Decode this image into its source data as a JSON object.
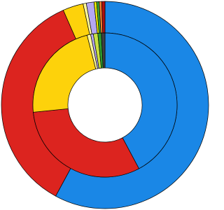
{
  "chart_data": {
    "type": "pie",
    "rings": [
      {
        "values": [
          57.9,
          35.5,
          3.2,
          0.5,
          1.2,
          0.4,
          0.4,
          0.4,
          0.5
        ],
        "colors": [
          "#1a87e6",
          "#dc241f",
          "#fdd20b",
          "#fff89a",
          "#b4a7f2",
          "#e8e800",
          "#3aa03a",
          "#f08030",
          "#b01010"
        ]
      },
      {
        "values": [
          42.2,
          31.2,
          22.6,
          0.8,
          0.6,
          1.0,
          0.8,
          0.8
        ],
        "colors": [
          "#1a87e6",
          "#dc241f",
          "#fdd20b",
          "#fff89a",
          "#b4a7f2",
          "#c8e040",
          "#2e9a2e",
          "#404040"
        ]
      }
    ]
  }
}
